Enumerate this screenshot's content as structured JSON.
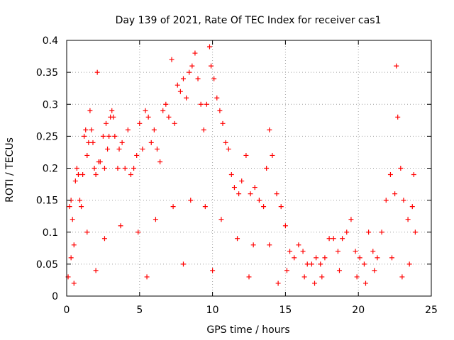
{
  "chart_data": {
    "type": "scatter",
    "title": "Day 139 of 2021, Rate Of TEC Index for receiver cas1",
    "xlabel": "GPS time / hours",
    "ylabel": "ROTI / TECUs",
    "xlim": [
      0,
      25
    ],
    "ylim": [
      0,
      0.4
    ],
    "xticks": [
      0,
      5,
      10,
      15,
      20,
      25
    ],
    "yticks": [
      0,
      0.05,
      0.1,
      0.15,
      0.2,
      0.25,
      0.3,
      0.35,
      0.4
    ],
    "grid": true,
    "marker": "+",
    "series": [
      {
        "color": "#ff0000",
        "points": [
          [
            0.1,
            0.03
          ],
          [
            0.2,
            0.14
          ],
          [
            0.3,
            0.15
          ],
          [
            0.4,
            0.12
          ],
          [
            0.5,
            0.08
          ],
          [
            0.6,
            0.18
          ],
          [
            0.7,
            0.2
          ],
          [
            0.8,
            0.19
          ],
          [
            0.9,
            0.15
          ],
          [
            1.0,
            0.14
          ],
          [
            1.1,
            0.19
          ],
          [
            1.2,
            0.25
          ],
          [
            1.3,
            0.26
          ],
          [
            1.4,
            0.22
          ],
          [
            1.5,
            0.24
          ],
          [
            1.6,
            0.29
          ],
          [
            1.7,
            0.26
          ],
          [
            1.8,
            0.24
          ],
          [
            1.9,
            0.2
          ],
          [
            2.0,
            0.19
          ],
          [
            2.1,
            0.35
          ],
          [
            2.2,
            0.21
          ],
          [
            2.3,
            0.21
          ],
          [
            2.5,
            0.25
          ],
          [
            2.6,
            0.2
          ],
          [
            2.7,
            0.27
          ],
          [
            2.8,
            0.23
          ],
          [
            2.9,
            0.25
          ],
          [
            3.0,
            0.28
          ],
          [
            3.1,
            0.29
          ],
          [
            3.2,
            0.28
          ],
          [
            3.3,
            0.25
          ],
          [
            3.5,
            0.2
          ],
          [
            3.6,
            0.23
          ],
          [
            3.8,
            0.24
          ],
          [
            4.0,
            0.2
          ],
          [
            4.2,
            0.26
          ],
          [
            4.4,
            0.19
          ],
          [
            4.6,
            0.2
          ],
          [
            4.8,
            0.22
          ],
          [
            5.0,
            0.27
          ],
          [
            5.2,
            0.23
          ],
          [
            5.4,
            0.29
          ],
          [
            5.6,
            0.28
          ],
          [
            5.8,
            0.24
          ],
          [
            6.0,
            0.26
          ],
          [
            6.2,
            0.23
          ],
          [
            6.4,
            0.21
          ],
          [
            6.6,
            0.29
          ],
          [
            6.8,
            0.3
          ],
          [
            7.0,
            0.28
          ],
          [
            7.2,
            0.37
          ],
          [
            7.4,
            0.27
          ],
          [
            7.6,
            0.33
          ],
          [
            7.8,
            0.32
          ],
          [
            8.0,
            0.34
          ],
          [
            8.2,
            0.31
          ],
          [
            8.4,
            0.35
          ],
          [
            8.6,
            0.36
          ],
          [
            8.8,
            0.38
          ],
          [
            9.0,
            0.34
          ],
          [
            9.2,
            0.3
          ],
          [
            9.4,
            0.26
          ],
          [
            9.6,
            0.3
          ],
          [
            9.8,
            0.39
          ],
          [
            9.9,
            0.36
          ],
          [
            10.1,
            0.34
          ],
          [
            10.3,
            0.31
          ],
          [
            10.5,
            0.29
          ],
          [
            10.7,
            0.27
          ],
          [
            10.9,
            0.24
          ],
          [
            11.1,
            0.23
          ],
          [
            11.3,
            0.19
          ],
          [
            11.5,
            0.17
          ],
          [
            11.8,
            0.16
          ],
          [
            12.0,
            0.18
          ],
          [
            12.3,
            0.22
          ],
          [
            12.6,
            0.16
          ],
          [
            12.9,
            0.17
          ],
          [
            13.2,
            0.15
          ],
          [
            13.5,
            0.14
          ],
          [
            13.7,
            0.2
          ],
          [
            13.9,
            0.26
          ],
          [
            14.1,
            0.22
          ],
          [
            14.4,
            0.16
          ],
          [
            14.7,
            0.14
          ],
          [
            15.0,
            0.11
          ],
          [
            15.3,
            0.07
          ],
          [
            15.6,
            0.06
          ],
          [
            15.9,
            0.08
          ],
          [
            16.2,
            0.07
          ],
          [
            16.5,
            0.05
          ],
          [
            16.8,
            0.05
          ],
          [
            17.1,
            0.06
          ],
          [
            17.4,
            0.05
          ],
          [
            17.7,
            0.06
          ],
          [
            18.0,
            0.09
          ],
          [
            18.3,
            0.09
          ],
          [
            18.6,
            0.07
          ],
          [
            18.9,
            0.09
          ],
          [
            19.2,
            0.1
          ],
          [
            19.5,
            0.12
          ],
          [
            19.8,
            0.07
          ],
          [
            20.1,
            0.06
          ],
          [
            20.4,
            0.05
          ],
          [
            20.7,
            0.1
          ],
          [
            21.0,
            0.07
          ],
          [
            21.3,
            0.06
          ],
          [
            21.6,
            0.1
          ],
          [
            21.9,
            0.15
          ],
          [
            22.2,
            0.19
          ],
          [
            22.5,
            0.16
          ],
          [
            22.6,
            0.36
          ],
          [
            22.7,
            0.28
          ],
          [
            22.9,
            0.2
          ],
          [
            23.1,
            0.15
          ],
          [
            23.4,
            0.12
          ],
          [
            23.7,
            0.14
          ],
          [
            23.8,
            0.19
          ],
          [
            23.9,
            0.1
          ],
          [
            0.3,
            0.06
          ],
          [
            1.4,
            0.1
          ],
          [
            2.6,
            0.09
          ],
          [
            3.7,
            0.11
          ],
          [
            4.9,
            0.1
          ],
          [
            6.1,
            0.12
          ],
          [
            7.3,
            0.14
          ],
          [
            8.5,
            0.15
          ],
          [
            9.5,
            0.14
          ],
          [
            10.6,
            0.12
          ],
          [
            11.7,
            0.09
          ],
          [
            12.8,
            0.08
          ],
          [
            13.9,
            0.08
          ],
          [
            15.1,
            0.04
          ],
          [
            16.3,
            0.03
          ],
          [
            17.5,
            0.03
          ],
          [
            18.7,
            0.04
          ],
          [
            19.9,
            0.03
          ],
          [
            21.1,
            0.04
          ],
          [
            22.3,
            0.06
          ],
          [
            23.5,
            0.05
          ],
          [
            0.5,
            0.02
          ],
          [
            2.0,
            0.04
          ],
          [
            5.5,
            0.03
          ],
          [
            8.0,
            0.05
          ],
          [
            10.0,
            0.04
          ],
          [
            12.5,
            0.03
          ],
          [
            14.5,
            0.02
          ],
          [
            17.0,
            0.02
          ],
          [
            20.5,
            0.02
          ],
          [
            23.0,
            0.03
          ]
        ]
      }
    ]
  }
}
